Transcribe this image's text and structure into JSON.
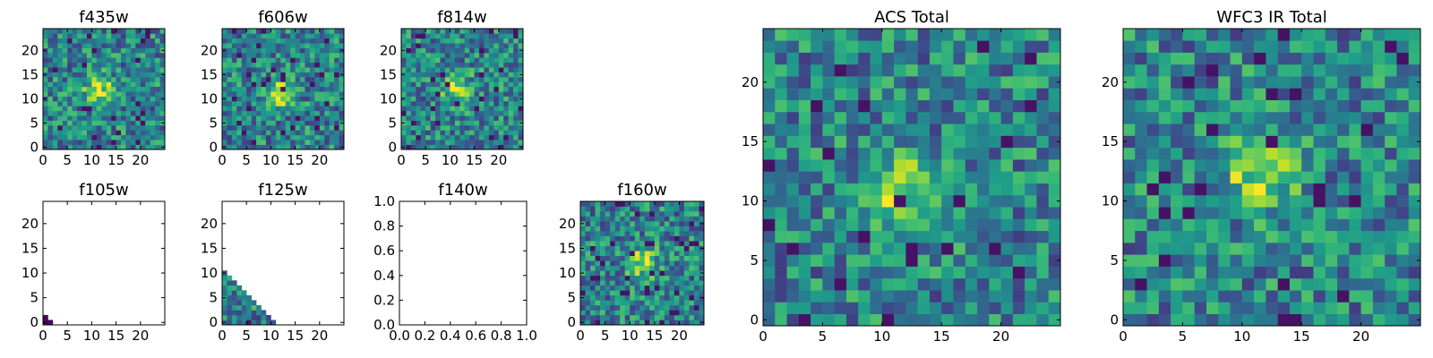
{
  "colors": {
    "background": "#ffffff",
    "frame": "#000000",
    "colormap": "viridis"
  },
  "chart_data": [
    {
      "type": "heatmap",
      "title": "f435w",
      "grid": false,
      "xlim": [
        -0.5,
        24.5
      ],
      "ylim": [
        -0.5,
        24.5
      ],
      "xticks": [
        "0",
        "5",
        "10",
        "15",
        "20"
      ],
      "yticks": [
        "0",
        "5",
        "10",
        "15",
        "20"
      ],
      "coverage": "full",
      "peak": [
        11,
        12
      ],
      "seed": 11
    },
    {
      "type": "heatmap",
      "title": "f606w",
      "grid": false,
      "xlim": [
        -0.5,
        24.5
      ],
      "ylim": [
        -0.5,
        24.5
      ],
      "xticks": [
        "0",
        "5",
        "10",
        "15",
        "20"
      ],
      "yticks": [
        "0",
        "5",
        "10",
        "15",
        "20"
      ],
      "coverage": "full",
      "peak": [
        11,
        11
      ],
      "seed": 23
    },
    {
      "type": "heatmap",
      "title": "f814w",
      "grid": false,
      "xlim": [
        -0.5,
        24.5
      ],
      "ylim": [
        -0.5,
        24.5
      ],
      "xticks": [
        "0",
        "5",
        "10",
        "15",
        "20"
      ],
      "yticks": [
        "0",
        "5",
        "10",
        "15",
        "20"
      ],
      "coverage": "full",
      "peak": [
        11,
        12
      ],
      "seed": 37
    },
    {
      "type": "heatmap",
      "title": "f105w",
      "grid": false,
      "xlim": [
        -0.5,
        24.5
      ],
      "ylim": [
        -0.5,
        24.5
      ],
      "xticks": [
        "0",
        "5",
        "10",
        "15",
        "20"
      ],
      "yticks": [
        "0",
        "5",
        "10",
        "15",
        "20"
      ],
      "coverage": "corner",
      "seed": 41
    },
    {
      "type": "heatmap",
      "title": "f125w",
      "grid": false,
      "xlim": [
        -0.5,
        24.5
      ],
      "ylim": [
        -0.5,
        24.5
      ],
      "xticks": [
        "0",
        "5",
        "10",
        "15",
        "20"
      ],
      "yticks": [
        "0",
        "5",
        "10",
        "15",
        "20"
      ],
      "coverage": "triangle",
      "seed": 53
    },
    {
      "type": "heatmap",
      "title": "f140w",
      "grid": false,
      "xlim": [
        0,
        1
      ],
      "ylim": [
        0,
        1
      ],
      "xticks": [
        "0.0",
        "0.2",
        "0.4",
        "0.6",
        "0.8",
        "1.0"
      ],
      "yticks": [
        "0.0",
        "0.2",
        "0.4",
        "0.6",
        "0.8",
        "1.0"
      ],
      "coverage": "none"
    },
    {
      "type": "heatmap",
      "title": "f160w",
      "grid": false,
      "xlim": [
        -0.5,
        24.5
      ],
      "ylim": [
        -0.5,
        24.5
      ],
      "xticks": [
        "0",
        "5",
        "10",
        "15",
        "20"
      ],
      "yticks": [
        "0",
        "5",
        "10",
        "15",
        "20"
      ],
      "coverage": "full",
      "peak": [
        12,
        12
      ],
      "seed": 67
    },
    {
      "type": "heatmap",
      "title": "ACS Total",
      "grid": false,
      "xlim": [
        -0.5,
        24.5
      ],
      "ylim": [
        -0.5,
        24.5
      ],
      "xticks": [
        "0",
        "5",
        "10",
        "15",
        "20"
      ],
      "yticks": [
        "0",
        "5",
        "10",
        "15",
        "20"
      ],
      "coverage": "full",
      "peak": [
        11,
        11
      ],
      "seed": 79
    },
    {
      "type": "heatmap",
      "title": "WFC3 IR Total",
      "grid": false,
      "xlim": [
        -0.5,
        24.5
      ],
      "ylim": [
        -0.5,
        24.5
      ],
      "xticks": [
        "0",
        "5",
        "10",
        "15",
        "20"
      ],
      "yticks": [
        "0",
        "5",
        "10",
        "15",
        "20"
      ],
      "coverage": "full",
      "peak": [
        11,
        12
      ],
      "seed": 97
    }
  ]
}
